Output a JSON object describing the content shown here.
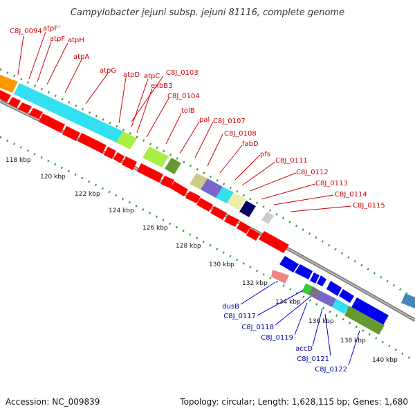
{
  "title": "Campylobacter jejuni subsp. jejuni 81116, complete genome",
  "footer": {
    "accession": "Accession: NC_009839",
    "topology": "Topology: circular; Length: 1,628,115 bp; Genes: 1,680"
  },
  "colors": {
    "forward_gene": "#ff0000",
    "reverse_gene": "#0000ee",
    "backbone": "#888888",
    "gc_dots": "#339933",
    "orange": "#ff9900",
    "cyan": "#33e0f0",
    "light_green": "#aaee44",
    "olive": "#669933",
    "tan": "#cccc88",
    "purple": "#7766cc",
    "pale_yellow": "#eeeeaa",
    "navy": "#000066",
    "light_gray": "#cccccc",
    "pink": "#ee8888",
    "green": "#33cc33",
    "steel_blue": "#4488bb"
  },
  "ticks": [
    "118 kbp",
    "120 kbp",
    "122 kbp",
    "124 kbp",
    "126 kbp",
    "128 kbp",
    "130 kbp",
    "132 kbp",
    "134 kbp",
    "136 kbp",
    "138 kbp",
    "140 kbp"
  ],
  "labels_top": [
    "C8J_0094",
    "atpF'",
    "atpF",
    "atpH",
    "atpA",
    "atpG",
    "atpD",
    "atpC",
    "C8J_0103",
    "exbB3",
    "C8J_0104",
    "tolB",
    "pal",
    "C8J_0107",
    "C8J_0108",
    "fabD",
    "pfs",
    "C8J_0111",
    "C8J_0112",
    "C8J_0113",
    "C8J_0114",
    "C8J_0115"
  ],
  "labels_bottom": [
    "dusB",
    "C8J_0117",
    "C8J_0118",
    "C8J_0119",
    "accD",
    "C8J_0121",
    "C8J_0122"
  ]
}
